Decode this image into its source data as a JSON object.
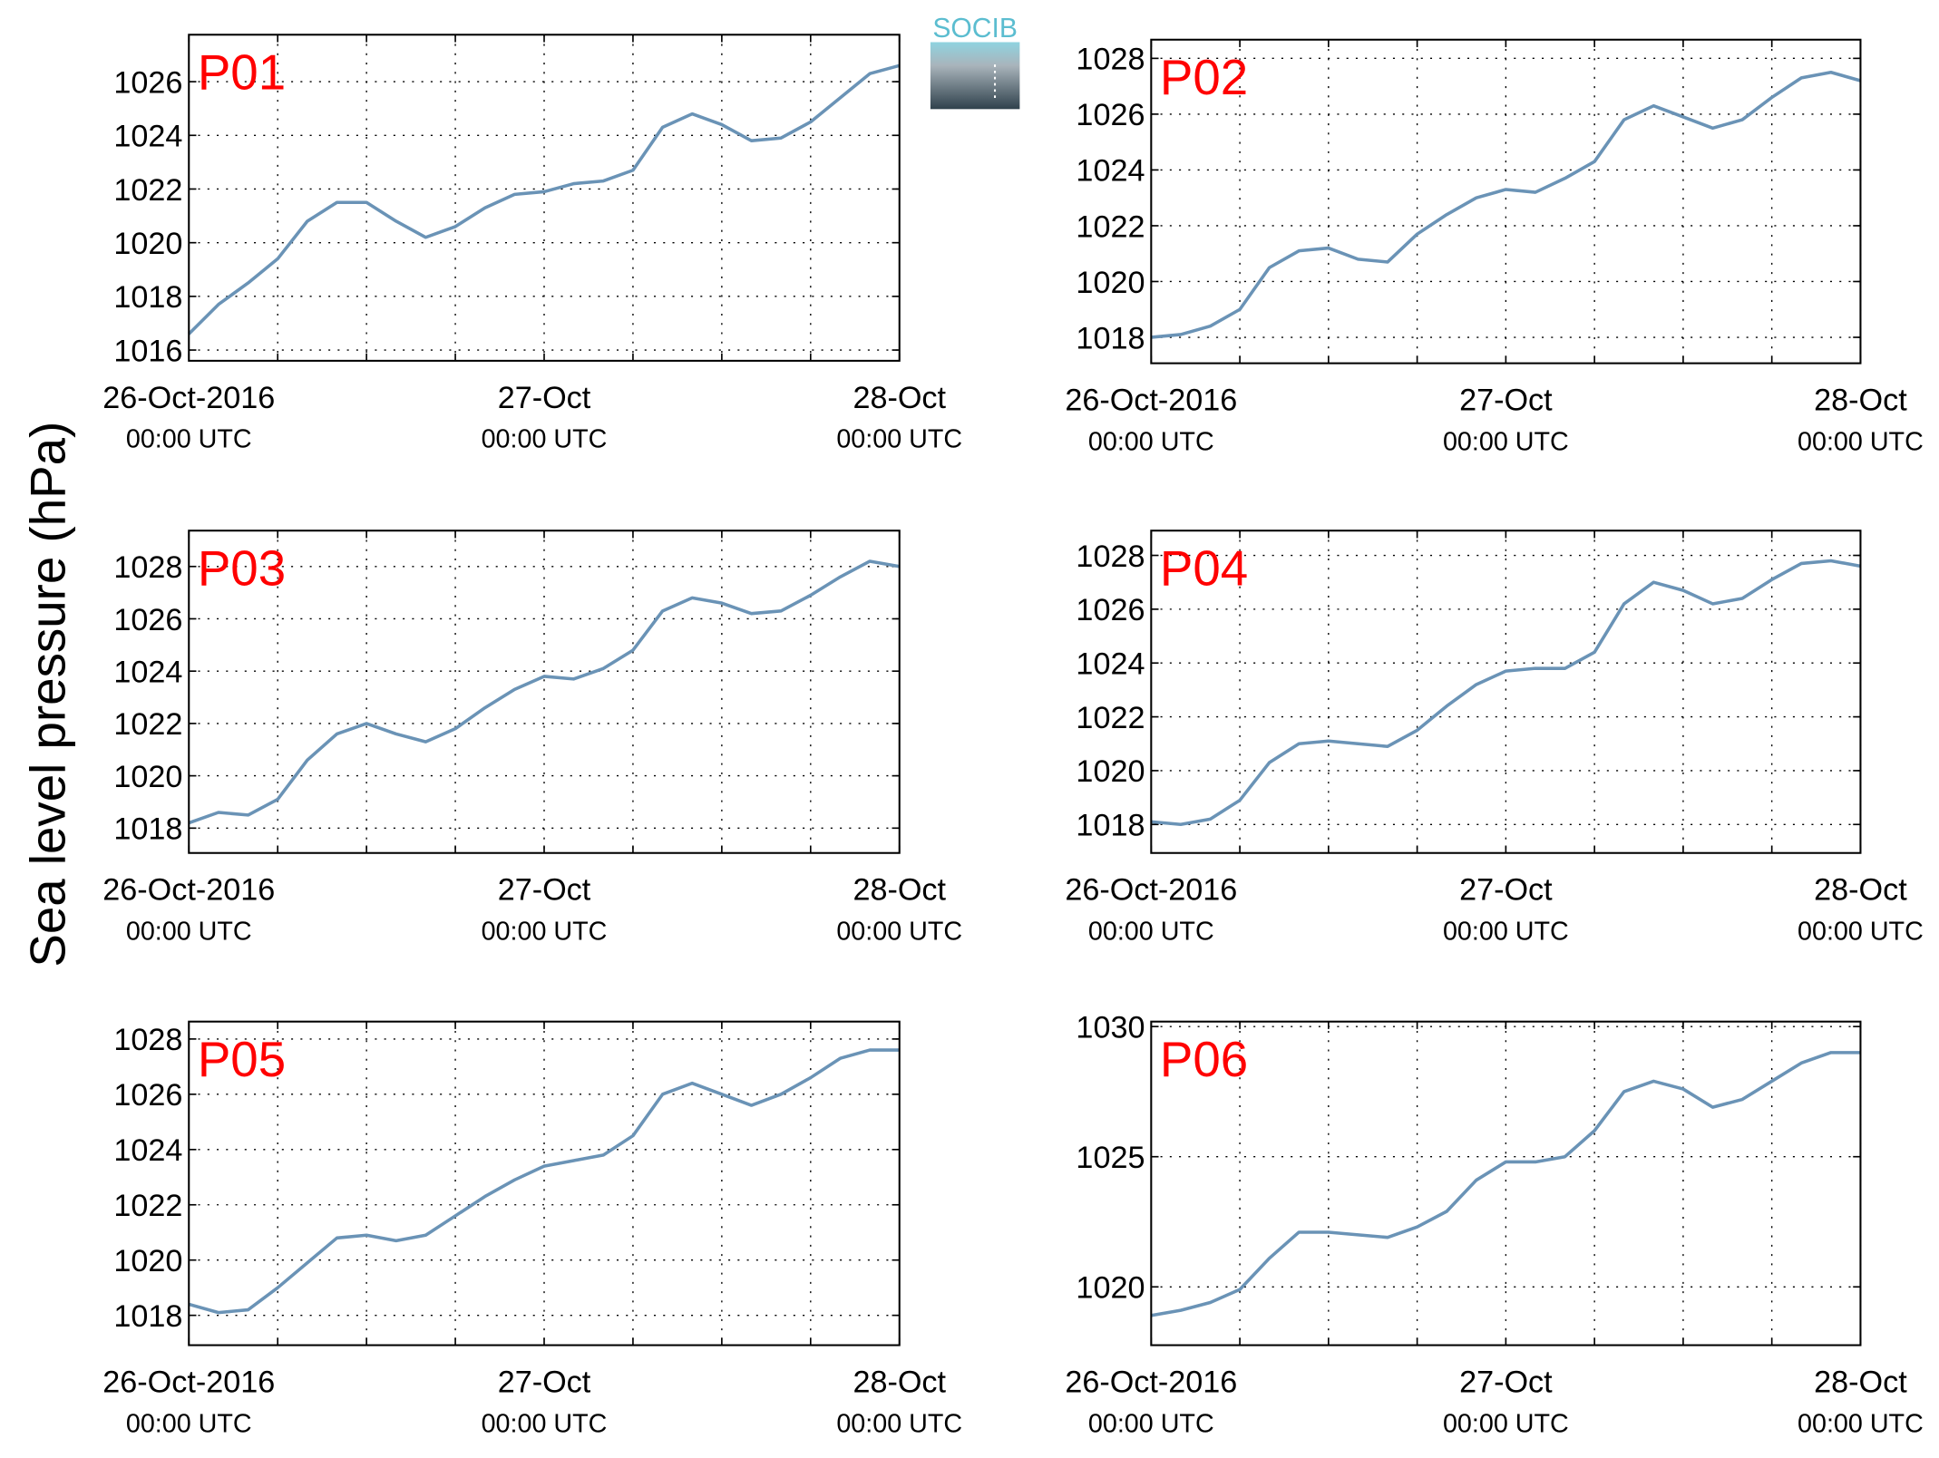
{
  "ylabel": "Sea level pressure (hPa)",
  "logo": "SOCIB",
  "chart_data": [
    {
      "type": "line",
      "title": "P01",
      "x": [
        0,
        2,
        4,
        6,
        8,
        10,
        12,
        14,
        16,
        18,
        20,
        22,
        24,
        26,
        28,
        30,
        32,
        34,
        36,
        38,
        40,
        42,
        44,
        46,
        48
      ],
      "values": [
        1016.6,
        1017.7,
        1018.5,
        1019.4,
        1020.8,
        1021.5,
        1021.5,
        1020.8,
        1020.2,
        1020.6,
        1021.3,
        1021.8,
        1021.9,
        1022.2,
        1022.3,
        1022.7,
        1024.3,
        1024.8,
        1024.4,
        1023.8,
        1023.9,
        1024.5,
        1025.4,
        1026.3,
        1026.6
      ],
      "color": "#6a93b6",
      "xlim": [
        0,
        48
      ],
      "xticks": [
        {
          "value": 0,
          "label": "26-Oct-2016",
          "sublabel": "00:00 UTC"
        },
        {
          "value": 24,
          "label": "27-Oct",
          "sublabel": "00:00 UTC"
        },
        {
          "value": 48,
          "label": "28-Oct",
          "sublabel": "00:00 UTC"
        }
      ],
      "xminor": [
        6,
        12,
        18,
        30,
        36,
        42
      ],
      "ylim": [
        1015.6,
        1027.75
      ],
      "yticks": [
        1016,
        1018,
        1020,
        1022,
        1024,
        1026
      ],
      "grid": true
    },
    {
      "type": "line",
      "title": "P02",
      "x": [
        0,
        2,
        4,
        6,
        8,
        10,
        12,
        14,
        16,
        18,
        20,
        22,
        24,
        26,
        28,
        30,
        32,
        34,
        36,
        38,
        40,
        42,
        44,
        46,
        48
      ],
      "values": [
        1018.0,
        1018.1,
        1018.4,
        1019.0,
        1020.5,
        1021.1,
        1021.2,
        1020.8,
        1020.7,
        1021.7,
        1022.4,
        1023.0,
        1023.3,
        1023.2,
        1023.7,
        1024.3,
        1025.8,
        1026.3,
        1025.9,
        1025.5,
        1025.8,
        1026.6,
        1027.3,
        1027.5,
        1027.2
      ],
      "color": "#6a93b6",
      "xlim": [
        0,
        48
      ],
      "xticks": [
        {
          "value": 0,
          "label": "26-Oct-2016",
          "sublabel": "00:00 UTC"
        },
        {
          "value": 24,
          "label": "27-Oct",
          "sublabel": "00:00 UTC"
        },
        {
          "value": 48,
          "label": "28-Oct",
          "sublabel": "00:00 UTC"
        }
      ],
      "xminor": [
        6,
        12,
        18,
        30,
        36,
        42
      ],
      "ylim": [
        1017.07,
        1028.67
      ],
      "yticks": [
        1018,
        1020,
        1022,
        1024,
        1026,
        1028
      ],
      "grid": true
    },
    {
      "type": "line",
      "title": "P03",
      "x": [
        0,
        2,
        4,
        6,
        8,
        10,
        12,
        14,
        16,
        18,
        20,
        22,
        24,
        26,
        28,
        30,
        32,
        34,
        36,
        38,
        40,
        42,
        44,
        46,
        48
      ],
      "values": [
        1018.2,
        1018.6,
        1018.5,
        1019.1,
        1020.6,
        1021.6,
        1022.0,
        1021.6,
        1021.3,
        1021.8,
        1022.6,
        1023.3,
        1023.8,
        1023.7,
        1024.1,
        1024.8,
        1026.3,
        1026.8,
        1026.6,
        1026.2,
        1026.3,
        1026.9,
        1027.6,
        1028.2,
        1028.0
      ],
      "color": "#6a93b6",
      "xlim": [
        0,
        48
      ],
      "xticks": [
        {
          "value": 0,
          "label": "26-Oct-2016",
          "sublabel": "00:00 UTC"
        },
        {
          "value": 24,
          "label": "27-Oct",
          "sublabel": "00:00 UTC"
        },
        {
          "value": 48,
          "label": "28-Oct",
          "sublabel": "00:00 UTC"
        }
      ],
      "xminor": [
        6,
        12,
        18,
        30,
        36,
        42
      ],
      "ylim": [
        1017.05,
        1029.37
      ],
      "yticks": [
        1018,
        1020,
        1022,
        1024,
        1026,
        1028
      ],
      "grid": true
    },
    {
      "type": "line",
      "title": "P04",
      "x": [
        0,
        2,
        4,
        6,
        8,
        10,
        12,
        14,
        16,
        18,
        20,
        22,
        24,
        26,
        28,
        30,
        32,
        34,
        36,
        38,
        40,
        42,
        44,
        46,
        48
      ],
      "values": [
        1018.1,
        1018.0,
        1018.2,
        1018.9,
        1020.3,
        1021.0,
        1021.1,
        1021.0,
        1020.9,
        1021.5,
        1022.4,
        1023.2,
        1023.7,
        1023.8,
        1023.8,
        1024.4,
        1026.2,
        1027.0,
        1026.7,
        1026.2,
        1026.4,
        1027.1,
        1027.7,
        1027.8,
        1027.6
      ],
      "color": "#6a93b6",
      "xlim": [
        0,
        48
      ],
      "xticks": [
        {
          "value": 0,
          "label": "26-Oct-2016",
          "sublabel": "00:00 UTC"
        },
        {
          "value": 24,
          "label": "27-Oct",
          "sublabel": "00:00 UTC"
        },
        {
          "value": 48,
          "label": "28-Oct",
          "sublabel": "00:00 UTC"
        }
      ],
      "xminor": [
        6,
        12,
        18,
        30,
        36,
        42
      ],
      "ylim": [
        1016.94,
        1028.92
      ],
      "yticks": [
        1018,
        1020,
        1022,
        1024,
        1026,
        1028
      ],
      "grid": true
    },
    {
      "type": "line",
      "title": "P05",
      "x": [
        0,
        2,
        4,
        6,
        8,
        10,
        12,
        14,
        16,
        18,
        20,
        22,
        24,
        26,
        28,
        30,
        32,
        34,
        36,
        38,
        40,
        42,
        44,
        46,
        48
      ],
      "values": [
        1018.4,
        1018.1,
        1018.2,
        1019.0,
        1019.9,
        1020.8,
        1020.9,
        1020.7,
        1020.9,
        1021.6,
        1022.3,
        1022.9,
        1023.4,
        1023.6,
        1023.8,
        1024.5,
        1026.0,
        1026.4,
        1026.0,
        1025.6,
        1026.0,
        1026.6,
        1027.3,
        1027.6,
        1027.6
      ],
      "color": "#6a93b6",
      "xlim": [
        0,
        48
      ],
      "xticks": [
        {
          "value": 0,
          "label": "26-Oct-2016",
          "sublabel": "00:00 UTC"
        },
        {
          "value": 24,
          "label": "27-Oct",
          "sublabel": "00:00 UTC"
        },
        {
          "value": 48,
          "label": "28-Oct",
          "sublabel": "00:00 UTC"
        }
      ],
      "xminor": [
        6,
        12,
        18,
        30,
        36,
        42
      ],
      "ylim": [
        1016.92,
        1028.63
      ],
      "yticks": [
        1018,
        1020,
        1022,
        1024,
        1026,
        1028
      ],
      "grid": true
    },
    {
      "type": "line",
      "title": "P06",
      "x": [
        0,
        2,
        4,
        6,
        8,
        10,
        12,
        14,
        16,
        18,
        20,
        22,
        24,
        26,
        28,
        30,
        32,
        34,
        36,
        38,
        40,
        42,
        44,
        46,
        48
      ],
      "values": [
        1018.9,
        1019.1,
        1019.4,
        1019.9,
        1021.1,
        1022.1,
        1022.1,
        1022.0,
        1021.9,
        1022.3,
        1022.9,
        1024.1,
        1024.8,
        1024.8,
        1025.0,
        1026.0,
        1027.5,
        1027.9,
        1027.6,
        1026.9,
        1027.2,
        1027.9,
        1028.6,
        1029.0,
        1029.0
      ],
      "color": "#6a93b6",
      "xlim": [
        0,
        48
      ],
      "xticks": [
        {
          "value": 0,
          "label": "26-Oct-2016",
          "sublabel": "00:00 UTC"
        },
        {
          "value": 24,
          "label": "27-Oct",
          "sublabel": "00:00 UTC"
        },
        {
          "value": 48,
          "label": "28-Oct",
          "sublabel": "00:00 UTC"
        }
      ],
      "xminor": [
        6,
        12,
        18,
        30,
        36,
        42
      ],
      "ylim": [
        1017.76,
        1030.19
      ],
      "yticks": [
        1020,
        1025,
        1030
      ],
      "grid": true
    }
  ]
}
